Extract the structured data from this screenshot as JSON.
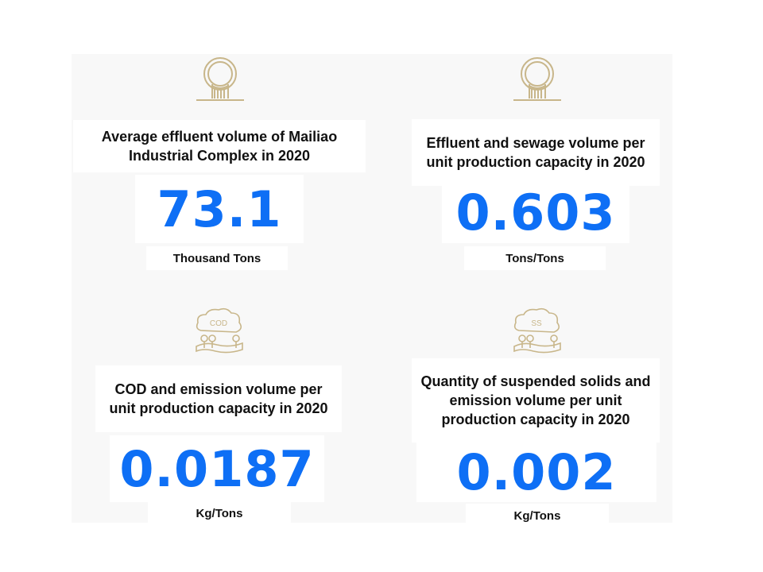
{
  "metrics": [
    {
      "title": "Average effluent volume of Mailiao Industrial Complex in 2020",
      "value": "73.1",
      "unit": "Thousand Tons",
      "icon": "water-outlet-icon"
    },
    {
      "title": "Effluent and sewage volume per unit production capacity in 2020",
      "value": "0.603",
      "unit": "Tons/Tons",
      "icon": "water-outlet-icon"
    },
    {
      "title": "COD and emission volume per unit production capacity in 2020",
      "value": "0.0187",
      "unit": "Kg/Tons",
      "icon": "cod-cloud-icon",
      "icon_label": "COD"
    },
    {
      "title": "Quantity of suspended solids and emission volume per unit production capacity in 2020",
      "value": "0.002",
      "unit": "Kg/Tons",
      "icon": "ss-cloud-icon",
      "icon_label": "SS"
    }
  ],
  "colors": {
    "value": "#0e6ff5",
    "icon": "#c8b68a",
    "panel": "#f8f8f8"
  }
}
